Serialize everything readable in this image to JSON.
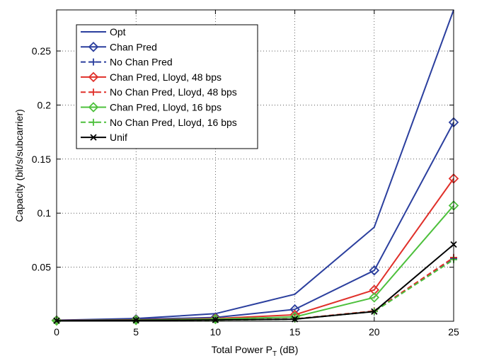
{
  "chart_data": {
    "type": "line",
    "xlabel": "Total Power P",
    "xlabel_sub": "T",
    "xlabel_suffix": " (dB)",
    "ylabel": "Capacity (bit/s/subcarrier)",
    "xlim": [
      0,
      25
    ],
    "ylim": [
      0,
      0.288
    ],
    "x_ticks": [
      0,
      5,
      10,
      15,
      20,
      25
    ],
    "y_ticks": [
      0.05,
      0.1,
      0.15,
      0.2,
      0.25
    ],
    "x_tick_labels": [
      "0",
      "5",
      "10",
      "15",
      "20",
      "25"
    ],
    "y_tick_labels": [
      "0.05",
      "0.1",
      "0.15",
      "0.2",
      "0.25"
    ],
    "grid": true,
    "legend_position": "top-left",
    "x": [
      0,
      5,
      10,
      15,
      20,
      25
    ],
    "series": [
      {
        "name": "Opt",
        "color": "#2b3f9e",
        "dash": "solid",
        "marker": "none",
        "values": [
          0.001,
          0.0025,
          0.007,
          0.025,
          0.087,
          0.288
        ]
      },
      {
        "name": "Chan Pred",
        "color": "#2b3f9e",
        "dash": "solid",
        "marker": "diamond",
        "values": [
          0.0008,
          0.0018,
          0.0035,
          0.011,
          0.047,
          0.184
        ]
      },
      {
        "name": "No Chan Pred",
        "color": "#2b3f9e",
        "dash": "dashed",
        "marker": "plus",
        "values": [
          0.0005,
          0.0008,
          0.0012,
          0.002,
          0.009,
          0.058
        ]
      },
      {
        "name": "Chan Pred, Lloyd, 48 bps",
        "color": "#e0302a",
        "dash": "solid",
        "marker": "diamond",
        "values": [
          0.0007,
          0.0013,
          0.0025,
          0.006,
          0.029,
          0.132
        ]
      },
      {
        "name": "No Chan Pred, Lloyd, 48 bps",
        "color": "#e0302a",
        "dash": "dashed",
        "marker": "plus",
        "values": [
          0.0005,
          0.0008,
          0.0012,
          0.0022,
          0.0095,
          0.059
        ]
      },
      {
        "name": "Chan Pred, Lloyd, 16 bps",
        "color": "#4dc03c",
        "dash": "solid",
        "marker": "diamond",
        "values": [
          0.0006,
          0.0011,
          0.002,
          0.004,
          0.022,
          0.107
        ]
      },
      {
        "name": "No Chan Pred, Lloyd, 16 bps",
        "color": "#4dc03c",
        "dash": "dashed",
        "marker": "plus",
        "values": [
          0.0005,
          0.0007,
          0.0011,
          0.002,
          0.009,
          0.057
        ]
      },
      {
        "name": "Unif",
        "color": "#000000",
        "dash": "solid",
        "marker": "x",
        "values": [
          0.0005,
          0.0008,
          0.0012,
          0.002,
          0.009,
          0.071
        ]
      }
    ]
  }
}
